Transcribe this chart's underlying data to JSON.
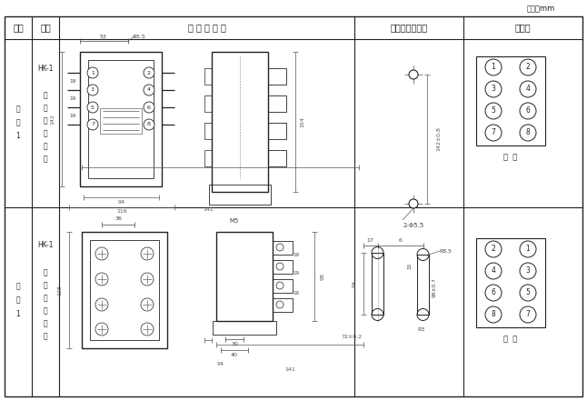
{
  "title_unit": "单位：mm",
  "col_headers": [
    "图号",
    "结构",
    "外 形 尺 寸 图",
    "安装开孔尺廸图",
    "端子图"
  ],
  "row1_fig": "HK-1",
  "row1_struct_chars": [
    "凸",
    "出",
    "式",
    "前",
    "接",
    "线"
  ],
  "row2_struct_chars": [
    "凸",
    "出",
    "式",
    "后",
    "接",
    "线"
  ],
  "fu_tu_1": [
    "附",
    "图",
    "1"
  ],
  "front_view_label": "前  视",
  "back_view_label": "背  视",
  "bg_color": "#ffffff",
  "line_color": "#222222",
  "dim_color": "#444444"
}
